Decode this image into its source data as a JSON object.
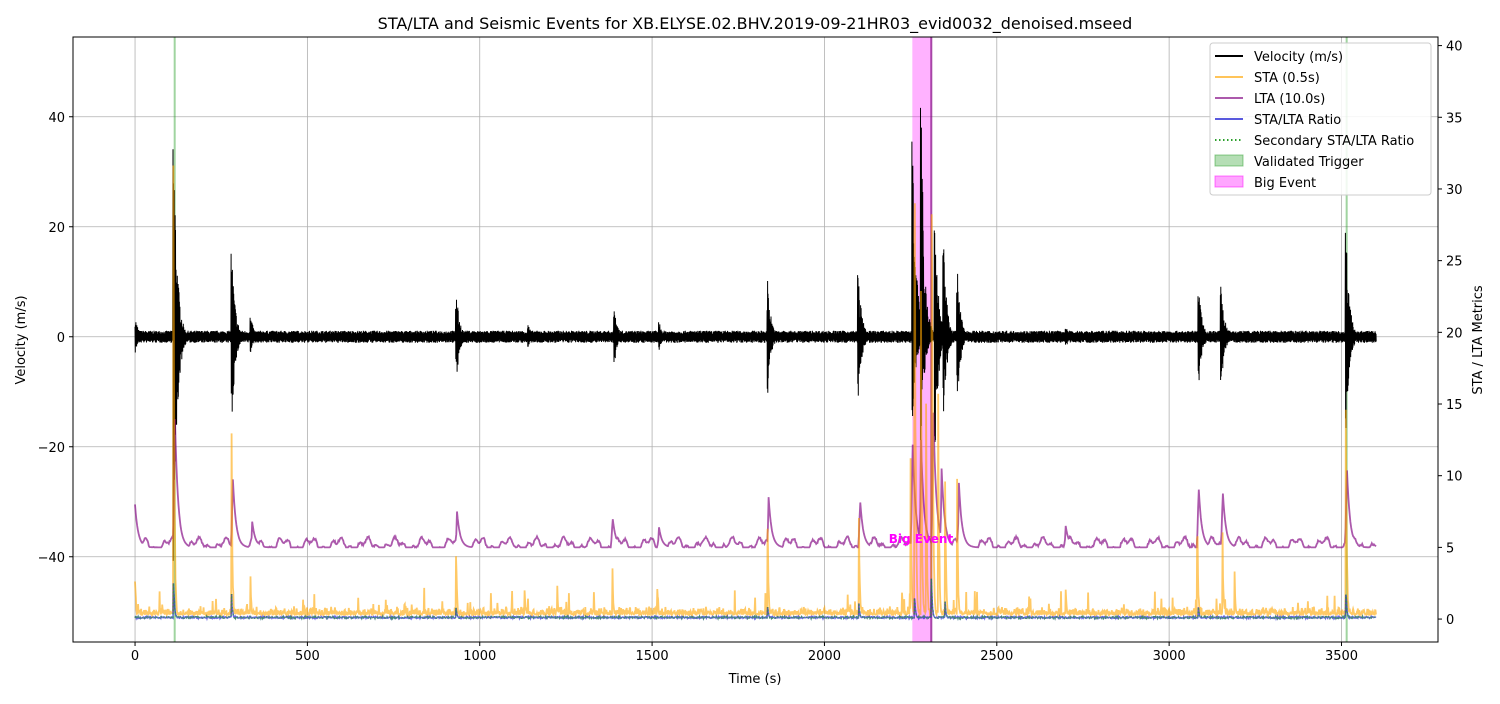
{
  "chart_data": {
    "type": "line",
    "title": "STA/LTA and Seismic Events for XB.ELYSE.02.BHV.2019-09-21HR03_evid0032_denoised.mseed",
    "xlabel": "Time (s)",
    "ylabel_left": "Velocity (m/s)",
    "ylabel_right": "STA / LTA Metrics",
    "xlim": [
      -180,
      3780
    ],
    "ylim_left": [
      -55.5,
      54.5
    ],
    "ylim_right": [
      -1.6,
      40.6
    ],
    "x_ticks": [
      0,
      500,
      1000,
      1500,
      2000,
      2500,
      3000,
      3500
    ],
    "x_tick_labels": [
      "0",
      "500",
      "1000",
      "1500",
      "2000",
      "2500",
      "3000",
      "3500"
    ],
    "y_left_ticks": [
      -40,
      -20,
      0,
      20,
      40
    ],
    "y_left_tick_labels": [
      "−40",
      "−20",
      "0",
      "20",
      "40"
    ],
    "y_right_ticks": [
      0,
      5,
      10,
      15,
      20,
      25,
      30,
      35,
      40
    ],
    "y_right_tick_labels": [
      "0",
      "5",
      "10",
      "15",
      "20",
      "25",
      "30",
      "35",
      "40"
    ],
    "grid": true,
    "legend_position": "top-right",
    "legend": [
      {
        "label": "Velocity (m/s)",
        "style": "line",
        "color": "#000000"
      },
      {
        "label": "STA (0.5s)",
        "style": "line",
        "color": "#ffa500"
      },
      {
        "label": "LTA (10.0s)",
        "style": "line",
        "color": "#800080"
      },
      {
        "label": "STA/LTA Ratio",
        "style": "line",
        "color": "#0000cd"
      },
      {
        "label": "Secondary STA/LTA Ratio",
        "style": "dotted",
        "color": "#2ca02c"
      },
      {
        "label": "Validated Trigger",
        "style": "patch",
        "color": "#2ca02c"
      },
      {
        "label": "Big Event",
        "style": "patch",
        "color": "#ff00ff"
      }
    ],
    "validated_triggers": [
      115,
      3515
    ],
    "big_event": {
      "x_start": 2255,
      "x_end": 2310,
      "label": "Big Event",
      "label_x": 2280,
      "label_y": 5.3
    },
    "velocity_bursts": [
      {
        "t": 0,
        "pos": 4,
        "neg": -3
      },
      {
        "t": 112,
        "pos": 39,
        "neg": -42
      },
      {
        "t": 280,
        "pos": 16.8,
        "neg": -16.5
      },
      {
        "t": 335,
        "pos": 4,
        "neg": -3
      },
      {
        "t": 932,
        "pos": 8.3,
        "neg": -8.2
      },
      {
        "t": 1140,
        "pos": 2.5,
        "neg": -2
      },
      {
        "t": 1390,
        "pos": 6,
        "neg": -5
      },
      {
        "t": 1520,
        "pos": 3,
        "neg": -2.5
      },
      {
        "t": 1835,
        "pos": 10.5,
        "neg": -10.3
      },
      {
        "t": 2098,
        "pos": 12.2,
        "neg": -11.5
      },
      {
        "t": 2255,
        "pos": 47,
        "neg": -15.5
      },
      {
        "t": 2280,
        "pos": 44,
        "neg": -19
      },
      {
        "t": 2320,
        "pos": 24,
        "neg": -22
      },
      {
        "t": 2345,
        "pos": 18,
        "neg": -15
      },
      {
        "t": 2385,
        "pos": 13,
        "neg": -12
      },
      {
        "t": 2700,
        "pos": 2,
        "neg": -2
      },
      {
        "t": 3085,
        "pos": 10,
        "neg": -9
      },
      {
        "t": 3150,
        "pos": 10.2,
        "neg": -9.5
      },
      {
        "t": 3513,
        "pos": 19.5,
        "neg": -17
      }
    ],
    "sta_peaks": [
      {
        "t": 0,
        "v": 3.2
      },
      {
        "t": 112,
        "v": 32
      },
      {
        "t": 280,
        "v": 13.5
      },
      {
        "t": 335,
        "v": 3
      },
      {
        "t": 932,
        "v": 4.7
      },
      {
        "t": 1130,
        "v": 2.5
      },
      {
        "t": 1225,
        "v": 2.4
      },
      {
        "t": 1385,
        "v": 4.1
      },
      {
        "t": 1515,
        "v": 2.9
      },
      {
        "t": 1835,
        "v": 8.6
      },
      {
        "t": 2100,
        "v": 9.4
      },
      {
        "t": 2225,
        "v": 2.5
      },
      {
        "t": 2250,
        "v": 12
      },
      {
        "t": 2262,
        "v": 37
      },
      {
        "t": 2280,
        "v": 25
      },
      {
        "t": 2295,
        "v": 16
      },
      {
        "t": 2312,
        "v": 38
      },
      {
        "t": 2330,
        "v": 20
      },
      {
        "t": 2350,
        "v": 13
      },
      {
        "t": 2385,
        "v": 10
      },
      {
        "t": 2700,
        "v": 2.6
      },
      {
        "t": 3082,
        "v": 7
      },
      {
        "t": 3155,
        "v": 6.7
      },
      {
        "t": 3190,
        "v": 3.5
      },
      {
        "t": 3513,
        "v": 17
      }
    ],
    "lta_peaks": [
      {
        "t": 0,
        "v": 8
      },
      {
        "t": 115,
        "v": 15
      },
      {
        "t": 283,
        "v": 10.3
      },
      {
        "t": 340,
        "v": 6.8
      },
      {
        "t": 934,
        "v": 7.5
      },
      {
        "t": 1385,
        "v": 7.2
      },
      {
        "t": 1520,
        "v": 6.4
      },
      {
        "t": 1838,
        "v": 8.5
      },
      {
        "t": 2103,
        "v": 8.5
      },
      {
        "t": 2255,
        "v": 13
      },
      {
        "t": 2280,
        "v": 12.5
      },
      {
        "t": 2315,
        "v": 15.5
      },
      {
        "t": 2340,
        "v": 10.5
      },
      {
        "t": 2390,
        "v": 9.5
      },
      {
        "t": 2700,
        "v": 6.5
      },
      {
        "t": 3085,
        "v": 9.5
      },
      {
        "t": 3155,
        "v": 9.2
      },
      {
        "t": 3515,
        "v": 11
      }
    ],
    "ratio_peaks": [
      {
        "t": 112,
        "v": 2.8
      },
      {
        "t": 280,
        "v": 1.8
      },
      {
        "t": 932,
        "v": 0.8
      },
      {
        "t": 1835,
        "v": 1
      },
      {
        "t": 2100,
        "v": 1.1
      },
      {
        "t": 2262,
        "v": 1.5
      },
      {
        "t": 2310,
        "v": 3.2
      },
      {
        "t": 2350,
        "v": 1.3
      },
      {
        "t": 3085,
        "v": 0.9
      },
      {
        "t": 3513,
        "v": 2
      }
    ],
    "t_end": 3600
  }
}
